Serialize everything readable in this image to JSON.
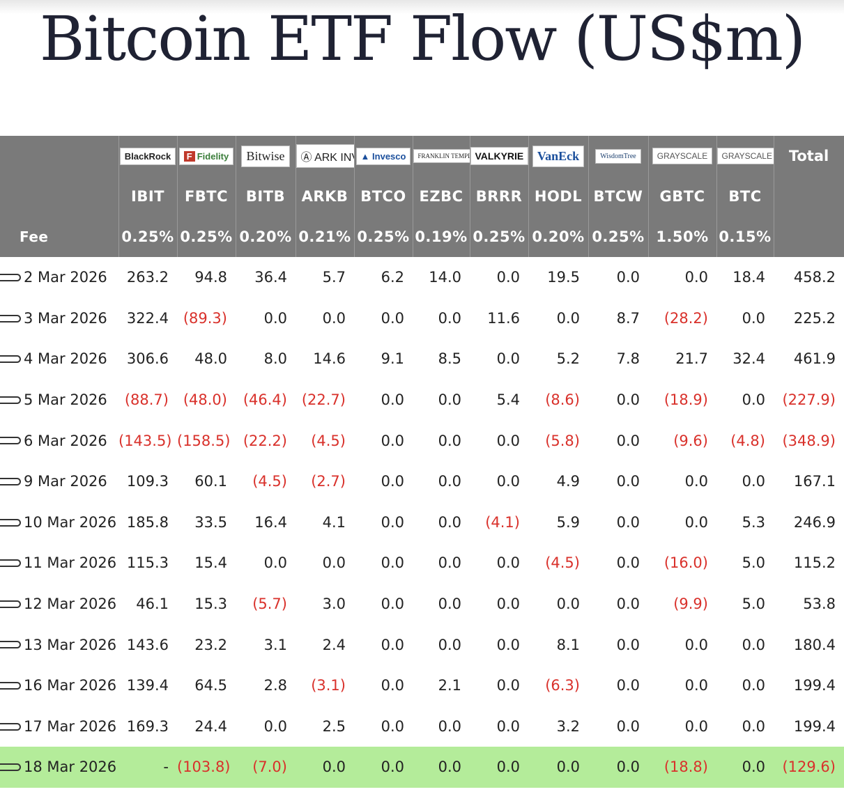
{
  "title": "Bitcoin ETF Flow (US$m)",
  "header_color": "#7a7a7a",
  "negative_color": "#d9312b",
  "highlight_color": "#b4ec9a",
  "issuers": [
    {
      "logo": "BlackRock",
      "ticker": "IBIT",
      "fee": "0.25%"
    },
    {
      "logo": "Fidelity",
      "ticker": "FBTC",
      "fee": "0.25%"
    },
    {
      "logo": "Bitwise",
      "ticker": "BITB",
      "fee": "0.20%"
    },
    {
      "logo": "ARK INVEST",
      "ticker": "ARKB",
      "fee": "0.21%"
    },
    {
      "logo": "Invesco",
      "ticker": "BTCO",
      "fee": "0.25%"
    },
    {
      "logo": "FRANKLIN TEMPLETON",
      "ticker": "EZBC",
      "fee": "0.19%"
    },
    {
      "logo": "VALKYRIE",
      "ticker": "BRRR",
      "fee": "0.25%"
    },
    {
      "logo": "VanEck",
      "ticker": "HODL",
      "fee": "0.20%"
    },
    {
      "logo": "WisdomTree",
      "ticker": "BTCW",
      "fee": "0.25%"
    },
    {
      "logo": "GRAYSCALE",
      "ticker": "GBTC",
      "fee": "1.50%"
    },
    {
      "logo": "GRAYSCALE",
      "ticker": "BTC",
      "fee": "0.15%"
    }
  ],
  "fee_label": "Fee",
  "total_label": "Total",
  "rows": [
    {
      "date": "2 Mar 2026",
      "values": [
        "263.2",
        "94.8",
        "36.4",
        "5.7",
        "6.2",
        "14.0",
        "0.0",
        "19.5",
        "0.0",
        "0.0",
        "18.4"
      ],
      "total": "458.2"
    },
    {
      "date": "3 Mar 2026",
      "values": [
        "322.4",
        "(89.3)",
        "0.0",
        "0.0",
        "0.0",
        "0.0",
        "11.6",
        "0.0",
        "8.7",
        "(28.2)",
        "0.0"
      ],
      "total": "225.2"
    },
    {
      "date": "4 Mar 2026",
      "values": [
        "306.6",
        "48.0",
        "8.0",
        "14.6",
        "9.1",
        "8.5",
        "0.0",
        "5.2",
        "7.8",
        "21.7",
        "32.4"
      ],
      "total": "461.9"
    },
    {
      "date": "5 Mar 2026",
      "values": [
        "(88.7)",
        "(48.0)",
        "(46.4)",
        "(22.7)",
        "0.0",
        "0.0",
        "5.4",
        "(8.6)",
        "0.0",
        "(18.9)",
        "0.0"
      ],
      "total": "(227.9)"
    },
    {
      "date": "6 Mar 2026",
      "values": [
        "(143.5)",
        "(158.5)",
        "(22.2)",
        "(4.5)",
        "0.0",
        "0.0",
        "0.0",
        "(5.8)",
        "0.0",
        "(9.6)",
        "(4.8)"
      ],
      "total": "(348.9)"
    },
    {
      "date": "9 Mar 2026",
      "values": [
        "109.3",
        "60.1",
        "(4.5)",
        "(2.7)",
        "0.0",
        "0.0",
        "0.0",
        "4.9",
        "0.0",
        "0.0",
        "0.0"
      ],
      "total": "167.1"
    },
    {
      "date": "10 Mar 2026",
      "values": [
        "185.8",
        "33.5",
        "16.4",
        "4.1",
        "0.0",
        "0.0",
        "(4.1)",
        "5.9",
        "0.0",
        "0.0",
        "5.3"
      ],
      "total": "246.9"
    },
    {
      "date": "11 Mar 2026",
      "values": [
        "115.3",
        "15.4",
        "0.0",
        "0.0",
        "0.0",
        "0.0",
        "0.0",
        "(4.5)",
        "0.0",
        "(16.0)",
        "5.0"
      ],
      "total": "115.2"
    },
    {
      "date": "12 Mar 2026",
      "values": [
        "46.1",
        "15.3",
        "(5.7)",
        "3.0",
        "0.0",
        "0.0",
        "0.0",
        "0.0",
        "0.0",
        "(9.9)",
        "5.0"
      ],
      "total": "53.8"
    },
    {
      "date": "13 Mar 2026",
      "values": [
        "143.6",
        "23.2",
        "3.1",
        "2.4",
        "0.0",
        "0.0",
        "0.0",
        "8.1",
        "0.0",
        "0.0",
        "0.0"
      ],
      "total": "180.4"
    },
    {
      "date": "16 Mar 2026",
      "values": [
        "139.4",
        "64.5",
        "2.8",
        "(3.1)",
        "0.0",
        "2.1",
        "0.0",
        "(6.3)",
        "0.0",
        "0.0",
        "0.0"
      ],
      "total": "199.4"
    },
    {
      "date": "17 Mar 2026",
      "values": [
        "169.3",
        "24.4",
        "0.0",
        "2.5",
        "0.0",
        "0.0",
        "0.0",
        "3.2",
        "0.0",
        "0.0",
        "0.0"
      ],
      "total": "199.4"
    },
    {
      "date": "18 Mar 2026",
      "values": [
        "-",
        "(103.8)",
        "(7.0)",
        "0.0",
        "0.0",
        "0.0",
        "0.0",
        "0.0",
        "0.0",
        "(18.8)",
        "0.0"
      ],
      "total": "(129.6)",
      "highlight": true
    }
  ]
}
